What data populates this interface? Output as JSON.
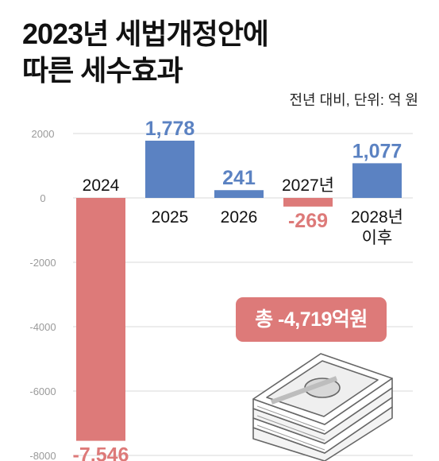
{
  "title_line1": "2023년 세법개정안에",
  "title_line2": "따른 세수효과",
  "unit_note": "전년 대비, 단위: 억 원",
  "total_label": "총 -4,719억원",
  "colors": {
    "positive": "#5b82c2",
    "negative": "#dd7a79",
    "grid": "#d9d9d9",
    "tick": "#9a9a9a"
  },
  "icons": [
    "money-stack-icon"
  ],
  "chart_data": {
    "type": "bar",
    "categories": [
      "2024",
      "2025",
      "2026",
      "2027년",
      "2028년 이후"
    ],
    "values": [
      -7546,
      1778,
      241,
      -269,
      1077
    ],
    "value_labels": [
      "-7,546",
      "1,778",
      "241",
      "-269",
      "1,077"
    ],
    "y_ticks": [
      2000,
      0,
      -2000,
      -4000,
      -6000,
      -8000
    ],
    "y_tick_labels": [
      "2000",
      "0",
      "-2000",
      "-4000",
      "-6000",
      "-8000"
    ],
    "ylim": [
      -8000,
      3000
    ],
    "grid": true,
    "legend": "none"
  }
}
